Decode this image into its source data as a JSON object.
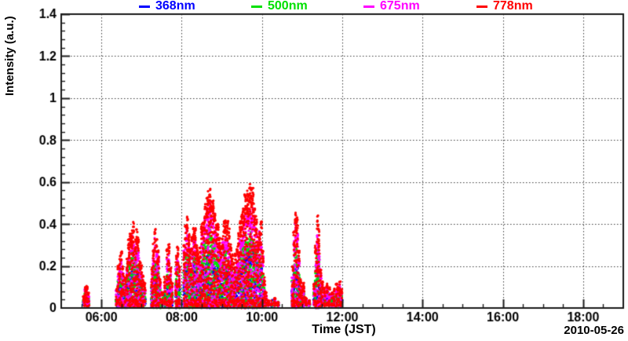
{
  "chart_data": {
    "type": "scatter",
    "title": "",
    "xlabel": "Time (JST)",
    "ylabel": "Intensity (a.u.)",
    "date_annotation": "2010-05-26",
    "x_range_hours": [
      5,
      19
    ],
    "y_range": [
      0,
      1.4
    ],
    "grid": "dotted",
    "legend_position": "top",
    "x_major_ticks": [
      {
        "hour": 6,
        "label": "06:00"
      },
      {
        "hour": 8,
        "label": "08:00"
      },
      {
        "hour": 10,
        "label": "10:00"
      },
      {
        "hour": 12,
        "label": "12:00"
      },
      {
        "hour": 14,
        "label": "14:00"
      },
      {
        "hour": 16,
        "label": "16:00"
      },
      {
        "hour": 18,
        "label": "18:00"
      }
    ],
    "x_minor_step_hours": 0.5,
    "y_major_ticks": [
      {
        "value": 0,
        "label": "0"
      },
      {
        "value": 0.2,
        "label": "0.2"
      },
      {
        "value": 0.4,
        "label": "0.4"
      },
      {
        "value": 0.6,
        "label": "0.6"
      },
      {
        "value": 0.8,
        "label": "0.8"
      },
      {
        "value": 1,
        "label": "1"
      },
      {
        "value": 1.2,
        "label": "1.2"
      },
      {
        "value": 1.4,
        "label": "1.4"
      }
    ],
    "y_minor_step": 0.04,
    "series": [
      {
        "name": "368nm",
        "color": "#0000ff",
        "scale_vs_778nm": 0.45
      },
      {
        "name": "500nm",
        "color": "#00e000",
        "scale_vs_778nm": 0.62
      },
      {
        "name": "675nm",
        "color": "#ff00ff",
        "scale_vs_778nm": 0.82
      },
      {
        "name": "778nm",
        "color": "#ff0000",
        "scale_vs_778nm": 1.0
      }
    ],
    "envelope_778nm_max_intensity_by_hour": [
      [
        5.56,
        0.06
      ],
      [
        5.6,
        0.11
      ],
      [
        5.64,
        0.12
      ],
      [
        5.68,
        0.08
      ],
      [
        6.38,
        0.1
      ],
      [
        6.42,
        0.2
      ],
      [
        6.46,
        0.26
      ],
      [
        6.5,
        0.28
      ],
      [
        6.54,
        0.2
      ],
      [
        6.6,
        0.15
      ],
      [
        6.64,
        0.25
      ],
      [
        6.68,
        0.33
      ],
      [
        6.72,
        0.38
      ],
      [
        6.76,
        0.42
      ],
      [
        6.8,
        0.41
      ],
      [
        6.84,
        0.37
      ],
      [
        6.88,
        0.42
      ],
      [
        6.92,
        0.35
      ],
      [
        6.96,
        0.25
      ],
      [
        7.0,
        0.22
      ],
      [
        7.04,
        0.16
      ],
      [
        7.08,
        0.12
      ],
      [
        7.26,
        0.2
      ],
      [
        7.3,
        0.32
      ],
      [
        7.34,
        0.38
      ],
      [
        7.38,
        0.35
      ],
      [
        7.42,
        0.28
      ],
      [
        7.46,
        0.15
      ],
      [
        7.52,
        0.08
      ],
      [
        7.58,
        0.15
      ],
      [
        7.64,
        0.3
      ],
      [
        7.68,
        0.33
      ],
      [
        7.72,
        0.22
      ],
      [
        7.76,
        0.12
      ],
      [
        7.86,
        0.25
      ],
      [
        7.9,
        0.3
      ],
      [
        7.94,
        0.2
      ],
      [
        8.06,
        0.3
      ],
      [
        8.1,
        0.4
      ],
      [
        8.14,
        0.44
      ],
      [
        8.18,
        0.38
      ],
      [
        8.22,
        0.3
      ],
      [
        8.26,
        0.35
      ],
      [
        8.3,
        0.43
      ],
      [
        8.34,
        0.4
      ],
      [
        8.38,
        0.32
      ],
      [
        8.42,
        0.26
      ],
      [
        8.46,
        0.32
      ],
      [
        8.5,
        0.4
      ],
      [
        8.54,
        0.46
      ],
      [
        8.58,
        0.5
      ],
      [
        8.62,
        0.54
      ],
      [
        8.66,
        0.56
      ],
      [
        8.7,
        0.57
      ],
      [
        8.74,
        0.55
      ],
      [
        8.78,
        0.52
      ],
      [
        8.82,
        0.48
      ],
      [
        8.86,
        0.44
      ],
      [
        8.9,
        0.4
      ],
      [
        8.94,
        0.34
      ],
      [
        8.98,
        0.3
      ],
      [
        9.02,
        0.36
      ],
      [
        9.06,
        0.42
      ],
      [
        9.1,
        0.46
      ],
      [
        9.14,
        0.44
      ],
      [
        9.18,
        0.38
      ],
      [
        9.22,
        0.32
      ],
      [
        9.26,
        0.26
      ],
      [
        9.3,
        0.22
      ],
      [
        9.34,
        0.26
      ],
      [
        9.38,
        0.3
      ],
      [
        9.42,
        0.36
      ],
      [
        9.46,
        0.42
      ],
      [
        9.5,
        0.48
      ],
      [
        9.54,
        0.52
      ],
      [
        9.58,
        0.55
      ],
      [
        9.62,
        0.57
      ],
      [
        9.66,
        0.59
      ],
      [
        9.7,
        0.6
      ],
      [
        9.74,
        0.6
      ],
      [
        9.78,
        0.58
      ],
      [
        9.82,
        0.54
      ],
      [
        9.86,
        0.46
      ],
      [
        9.9,
        0.36
      ],
      [
        9.94,
        0.4
      ],
      [
        9.98,
        0.42
      ],
      [
        10.02,
        0.3
      ],
      [
        10.06,
        0.15
      ],
      [
        10.1,
        0.08
      ],
      [
        10.16,
        0.04
      ],
      [
        10.24,
        0.03
      ],
      [
        10.32,
        0.05
      ],
      [
        10.4,
        0.03
      ],
      [
        10.76,
        0.2
      ],
      [
        10.8,
        0.38
      ],
      [
        10.84,
        0.47
      ],
      [
        10.88,
        0.44
      ],
      [
        10.92,
        0.28
      ],
      [
        10.96,
        0.15
      ],
      [
        11.0,
        0.1
      ],
      [
        11.04,
        0.12
      ],
      [
        11.1,
        0.06
      ],
      [
        11.18,
        0.04
      ],
      [
        11.3,
        0.12
      ],
      [
        11.34,
        0.3
      ],
      [
        11.38,
        0.45
      ],
      [
        11.42,
        0.38
      ],
      [
        11.46,
        0.2
      ],
      [
        11.5,
        0.14
      ],
      [
        11.56,
        0.1
      ],
      [
        11.62,
        0.12
      ],
      [
        11.68,
        0.1
      ],
      [
        11.74,
        0.08
      ],
      [
        11.8,
        0.1
      ],
      [
        11.86,
        0.12
      ],
      [
        11.9,
        0.1
      ],
      [
        11.94,
        0.13
      ],
      [
        11.98,
        0.1
      ]
    ]
  },
  "layout_colors": {
    "frame": "#1a1a1a",
    "grid": "#3a3a3a",
    "text": "#000000",
    "background": "#ffffff"
  }
}
